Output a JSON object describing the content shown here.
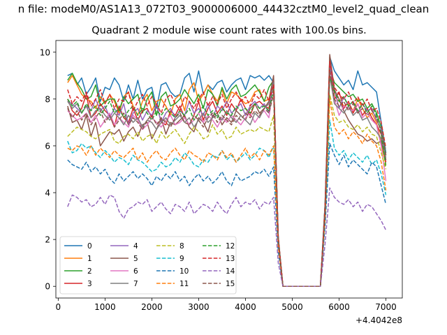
{
  "figure": {
    "suptitle": "n file: modeM0/AS1A13_072T03_9000006000_44432cztM0_level2_quad_clean",
    "title": "Quadrant 2 module wise count rates with 100.0s bins."
  },
  "chart_data": {
    "type": "line",
    "title": "Quadrant 2 module wise count rates with 100.0s bins.",
    "xlabel": "",
    "ylabel": "",
    "x_offset_label": "+4.4042e8",
    "xlim": [
      -50,
      7350
    ],
    "ylim": [
      -0.5,
      10.5
    ],
    "xticks": [
      0,
      1000,
      2000,
      3000,
      4000,
      5000,
      6000,
      7000
    ],
    "yticks": [
      0,
      2,
      4,
      6,
      8,
      10
    ],
    "grid": false,
    "legend": {
      "placement": "lower-left",
      "columns": 4
    },
    "x": [
      200,
      300,
      400,
      500,
      600,
      700,
      800,
      900,
      1000,
      1100,
      1200,
      1300,
      1400,
      1500,
      1600,
      1700,
      1800,
      1900,
      2000,
      2100,
      2200,
      2300,
      2400,
      2500,
      2600,
      2700,
      2800,
      2900,
      3000,
      3100,
      3200,
      3300,
      3400,
      3500,
      3600,
      3700,
      3800,
      3900,
      4000,
      4100,
      4200,
      4300,
      4400,
      4500,
      4600,
      4700,
      4800,
      4900,
      5000,
      5100,
      5200,
      5300,
      5400,
      5500,
      5600,
      5700,
      5800,
      5900,
      6000,
      6100,
      6200,
      6300,
      6400,
      6500,
      6600,
      6700,
      6800,
      6900,
      7000
    ],
    "series": [
      {
        "name": "0",
        "color": "#1f77b4",
        "dash": false,
        "values": [
          9.0,
          9.1,
          8.6,
          8.9,
          8.2,
          8.5,
          8.9,
          7.9,
          8.5,
          8.4,
          8.9,
          8.6,
          7.9,
          8.6,
          8.0,
          8.8,
          8.0,
          8.4,
          8.5,
          7.6,
          8.6,
          8.7,
          8.3,
          8.1,
          8.2,
          8.9,
          9.1,
          8.3,
          9.2,
          8.2,
          8.6,
          8.4,
          8.7,
          8.8,
          8.3,
          8.6,
          8.8,
          8.9,
          8.4,
          9.0,
          8.9,
          9.0,
          8.8,
          9.0,
          8.7,
          2.1,
          0,
          0,
          0,
          0,
          0,
          0,
          0,
          0,
          0,
          3.5,
          9.8,
          9.2,
          8.9,
          8.6,
          8.8,
          8.4,
          9.2,
          8.6,
          8.7,
          8.5,
          8.3,
          7.0,
          5.7
        ]
      },
      {
        "name": "1",
        "color": "#ff7f0e",
        "dash": false,
        "values": [
          8.7,
          9.0,
          8.6,
          8.2,
          8.0,
          7.9,
          7.6,
          8.1,
          7.8,
          8.2,
          7.9,
          7.4,
          8.1,
          8.3,
          7.7,
          7.3,
          7.9,
          8.2,
          7.5,
          7.9,
          8.0,
          7.7,
          7.3,
          8.0,
          8.2,
          7.5,
          8.4,
          8.7,
          7.9,
          8.2,
          8.6,
          8.2,
          7.9,
          8.4,
          7.8,
          8.3,
          8.2,
          8.0,
          7.8,
          7.9,
          8.3,
          8.4,
          7.9,
          8.0,
          8.9,
          2.0,
          0,
          0,
          0,
          0,
          0,
          0,
          0,
          0,
          0,
          3.4,
          9.8,
          8.1,
          7.9,
          7.7,
          7.8,
          7.5,
          8.0,
          7.6,
          7.2,
          7.4,
          7.0,
          6.1,
          5.2
        ]
      },
      {
        "name": "2",
        "color": "#2ca02c",
        "dash": false,
        "values": [
          8.8,
          9.1,
          8.7,
          8.4,
          8.0,
          8.1,
          8.6,
          7.7,
          7.9,
          8.0,
          8.0,
          7.5,
          8.1,
          7.8,
          8.0,
          8.2,
          7.4,
          8.0,
          8.3,
          7.3,
          8.1,
          8.3,
          7.7,
          7.8,
          8.0,
          8.4,
          8.1,
          7.8,
          8.2,
          7.6,
          8.4,
          8.2,
          7.7,
          8.5,
          8.0,
          8.4,
          8.6,
          8.1,
          8.2,
          8.4,
          8.6,
          8.3,
          7.9,
          8.5,
          8.8,
          2.1,
          0,
          0,
          0,
          0,
          0,
          0,
          0,
          0,
          0,
          3.5,
          9.3,
          8.7,
          8.5,
          8.3,
          8.1,
          8.2,
          7.9,
          8.0,
          7.6,
          7.8,
          7.4,
          6.8,
          5.6
        ]
      },
      {
        "name": "3",
        "color": "#d62728",
        "dash": false,
        "values": [
          8.0,
          7.5,
          7.3,
          7.6,
          8.2,
          7.2,
          7.4,
          7.8,
          7.5,
          7.3,
          6.8,
          7.7,
          7.2,
          7.0,
          7.6,
          7.1,
          7.5,
          7.6,
          7.2,
          7.8,
          7.0,
          6.9,
          7.5,
          7.3,
          7.7,
          7.2,
          6.9,
          7.3,
          7.9,
          7.1,
          7.6,
          7.9,
          7.4,
          7.7,
          7.3,
          7.8,
          7.5,
          8.0,
          7.6,
          7.3,
          7.8,
          7.9,
          7.7,
          7.6,
          8.9,
          2.0,
          0,
          0,
          0,
          0,
          0,
          0,
          0,
          0,
          0,
          3.3,
          9.6,
          8.0,
          8.3,
          7.6,
          7.9,
          7.4,
          7.8,
          7.3,
          7.6,
          7.2,
          6.9,
          6.5,
          5.3
        ]
      },
      {
        "name": "4",
        "color": "#9467bd",
        "dash": false,
        "values": [
          7.9,
          7.8,
          7.6,
          7.4,
          7.7,
          7.5,
          8.0,
          7.5,
          7.7,
          7.2,
          7.6,
          7.3,
          7.8,
          6.9,
          7.4,
          7.6,
          7.1,
          7.5,
          7.3,
          7.8,
          7.0,
          7.4,
          7.6,
          7.2,
          7.5,
          7.3,
          7.9,
          7.4,
          7.6,
          7.3,
          7.8,
          7.2,
          7.7,
          7.5,
          7.9,
          7.4,
          7.6,
          7.8,
          7.3,
          7.7,
          7.9,
          7.6,
          7.8,
          7.4,
          8.8,
          2.0,
          0,
          0,
          0,
          0,
          0,
          0,
          0,
          0,
          0,
          3.4,
          9.5,
          8.4,
          7.6,
          8.1,
          7.7,
          7.9,
          7.4,
          7.8,
          7.5,
          7.6,
          7.1,
          6.7,
          5.4
        ]
      },
      {
        "name": "5",
        "color": "#8c564b",
        "dash": false,
        "values": [
          7.7,
          7.0,
          7.1,
          6.7,
          7.3,
          6.4,
          7.0,
          6.0,
          6.3,
          6.6,
          6.5,
          6.7,
          6.2,
          6.6,
          6.8,
          6.4,
          6.9,
          7.0,
          6.3,
          6.7,
          7.2,
          6.5,
          7.0,
          6.9,
          7.1,
          7.3,
          6.8,
          6.6,
          7.2,
          7.0,
          6.6,
          7.3,
          7.4,
          6.9,
          7.2,
          7.0,
          7.5,
          7.3,
          7.1,
          7.6,
          7.8,
          7.4,
          7.6,
          7.9,
          9.0,
          2.0,
          0,
          0,
          0,
          0,
          0,
          0,
          0,
          0,
          0,
          3.3,
          9.9,
          8.4,
          8.0,
          7.5,
          7.1,
          6.8,
          6.5,
          6.4,
          6.2,
          6.3,
          6.1,
          6.2,
          5.4
        ]
      },
      {
        "name": "6",
        "color": "#e377c2",
        "dash": false,
        "values": [
          7.5,
          7.3,
          7.1,
          7.2,
          7.4,
          7.0,
          7.3,
          6.8,
          7.1,
          7.4,
          6.9,
          7.2,
          7.0,
          6.8,
          7.3,
          7.1,
          6.7,
          6.9,
          7.2,
          7.0,
          6.8,
          7.1,
          7.3,
          6.9,
          7.0,
          7.2,
          6.9,
          7.1,
          7.4,
          7.0,
          7.3,
          7.1,
          6.8,
          7.2,
          7.0,
          7.3,
          7.1,
          6.9,
          7.2,
          7.4,
          7.0,
          7.3,
          7.5,
          7.2,
          8.6,
          1.9,
          0,
          0,
          0,
          0,
          0,
          0,
          0,
          0,
          0,
          3.2,
          9.1,
          8.0,
          7.3,
          7.7,
          7.6,
          7.5,
          7.8,
          7.2,
          7.4,
          7.1,
          6.9,
          6.0,
          4.5
        ]
      },
      {
        "name": "7",
        "color": "#7f7f7f",
        "dash": false,
        "values": [
          7.9,
          7.6,
          7.8,
          7.4,
          7.7,
          7.2,
          7.5,
          7.6,
          7.3,
          7.1,
          7.4,
          7.2,
          6.9,
          7.3,
          7.0,
          7.2,
          6.8,
          7.1,
          7.0,
          6.7,
          7.0,
          7.2,
          6.9,
          7.1,
          7.3,
          7.0,
          7.2,
          6.8,
          7.1,
          7.4,
          7.0,
          7.2,
          7.3,
          7.1,
          7.5,
          7.2,
          7.0,
          7.3,
          7.1,
          6.9,
          7.4,
          7.2,
          7.6,
          7.8,
          8.7,
          2.0,
          0,
          0,
          0,
          0,
          0,
          0,
          0,
          0,
          0,
          3.3,
          9.0,
          7.8,
          7.6,
          7.4,
          7.7,
          7.3,
          7.5,
          7.1,
          7.2,
          6.8,
          6.6,
          6.3,
          5.5
        ]
      },
      {
        "name": "8",
        "color": "#bcbd22",
        "dash": true,
        "values": [
          6.4,
          6.6,
          6.8,
          6.7,
          6.6,
          6.4,
          6.3,
          6.5,
          6.6,
          6.7,
          6.2,
          6.1,
          6.4,
          6.5,
          6.3,
          6.6,
          6.2,
          6.4,
          6.5,
          6.1,
          6.6,
          6.3,
          6.5,
          6.7,
          6.4,
          6.1,
          6.5,
          6.8,
          6.6,
          6.3,
          6.4,
          6.9,
          6.5,
          6.7,
          6.3,
          6.4,
          6.8,
          6.5,
          6.6,
          6.7,
          6.6,
          6.8,
          6.7,
          6.6,
          7.3,
          1.9,
          0,
          0,
          0,
          0,
          0,
          0,
          0,
          0,
          0,
          3.0,
          8.2,
          7.3,
          7.0,
          7.1,
          6.8,
          6.7,
          6.9,
          6.6,
          6.8,
          6.5,
          6.4,
          5.7,
          5.0
        ]
      },
      {
        "name": "9",
        "color": "#17becf",
        "dash": true,
        "values": [
          6.2,
          5.7,
          5.8,
          6.1,
          5.9,
          6.0,
          5.7,
          5.5,
          5.8,
          5.6,
          5.3,
          5.5,
          5.4,
          5.2,
          5.6,
          5.4,
          5.3,
          5.1,
          4.9,
          5.0,
          5.3,
          5.1,
          5.2,
          5.5,
          5.3,
          5.7,
          5.5,
          5.2,
          5.1,
          5.4,
          5.3,
          5.6,
          5.5,
          5.8,
          5.4,
          5.6,
          5.3,
          5.5,
          5.7,
          5.4,
          5.6,
          5.9,
          5.8,
          5.5,
          6.0,
          1.8,
          0,
          0,
          0,
          0,
          0,
          0,
          0,
          0,
          0,
          2.8,
          7.1,
          5.9,
          5.6,
          5.8,
          5.4,
          5.7,
          5.5,
          5.3,
          5.6,
          5.2,
          5.4,
          4.8,
          3.9
        ]
      },
      {
        "name": "10",
        "color": "#1f77b4",
        "dash": true,
        "values": [
          5.4,
          5.2,
          5.1,
          5.0,
          5.3,
          4.9,
          5.1,
          4.8,
          5.0,
          4.6,
          4.4,
          4.8,
          4.5,
          4.7,
          4.9,
          4.6,
          4.8,
          4.6,
          4.3,
          4.7,
          4.5,
          4.8,
          4.6,
          4.9,
          4.5,
          4.7,
          4.3,
          4.6,
          4.8,
          4.5,
          4.7,
          4.4,
          4.6,
          4.9,
          4.5,
          4.3,
          4.8,
          4.5,
          4.6,
          4.7,
          4.9,
          4.8,
          5.0,
          4.7,
          5.1,
          1.5,
          0,
          0,
          0,
          0,
          0,
          0,
          0,
          0,
          0,
          2.6,
          6.1,
          5.6,
          5.2,
          5.6,
          5.1,
          5.4,
          5.2,
          5.0,
          4.8,
          5.3,
          5.1,
          4.3,
          3.5
        ]
      },
      {
        "name": "11",
        "color": "#ff7f0e",
        "dash": true,
        "values": [
          5.9,
          5.8,
          6.0,
          5.9,
          5.6,
          6.0,
          5.6,
          5.9,
          5.7,
          5.5,
          5.8,
          5.6,
          5.5,
          5.7,
          5.9,
          5.4,
          5.7,
          5.3,
          5.6,
          5.8,
          5.5,
          5.4,
          5.7,
          5.9,
          5.6,
          5.4,
          5.8,
          5.6,
          5.5,
          5.3,
          5.7,
          5.6,
          5.4,
          5.8,
          5.5,
          5.7,
          5.3,
          5.6,
          5.9,
          5.5,
          5.7,
          5.4,
          5.8,
          5.6,
          6.0,
          1.7,
          0,
          0,
          0,
          0,
          0,
          0,
          0,
          0,
          0,
          2.9,
          8.0,
          6.8,
          6.5,
          6.7,
          6.3,
          6.6,
          6.4,
          6.1,
          6.5,
          6.2,
          6.0,
          5.3,
          4.1
        ]
      },
      {
        "name": "12",
        "color": "#2ca02c",
        "dash": true,
        "values": [
          8.0,
          7.7,
          7.9,
          7.4,
          7.8,
          7.5,
          7.7,
          7.3,
          7.6,
          7.9,
          7.4,
          7.6,
          7.2,
          7.5,
          7.7,
          7.3,
          7.6,
          7.4,
          7.1,
          7.5,
          7.3,
          7.6,
          7.4,
          7.2,
          7.5,
          7.3,
          7.6,
          7.1,
          7.4,
          7.7,
          7.3,
          7.5,
          7.2,
          7.6,
          7.4,
          7.3,
          7.7,
          7.5,
          7.6,
          7.4,
          7.8,
          7.6,
          7.7,
          7.5,
          8.4,
          2.0,
          0,
          0,
          0,
          0,
          0,
          0,
          0,
          0,
          0,
          3.2,
          9.0,
          8.3,
          7.9,
          8.1,
          7.7,
          7.9,
          7.5,
          7.8,
          7.4,
          7.7,
          7.3,
          6.5,
          5.1
        ]
      },
      {
        "name": "13",
        "color": "#d62728",
        "dash": true,
        "values": [
          8.4,
          7.8,
          8.1,
          7.9,
          8.3,
          7.7,
          8.0,
          8.4,
          7.8,
          8.2,
          7.6,
          8.0,
          7.9,
          8.3,
          7.5,
          7.9,
          8.2,
          7.7,
          8.1,
          7.8,
          7.4,
          8.0,
          8.2,
          7.8,
          7.5,
          8.1,
          7.9,
          7.6,
          8.0,
          8.3,
          7.7,
          8.1,
          7.8,
          8.2,
          7.6,
          8.0,
          8.3,
          7.9,
          8.1,
          7.7,
          8.2,
          8.0,
          8.4,
          7.9,
          8.6,
          2.1,
          0,
          0,
          0,
          0,
          0,
          0,
          0,
          0,
          0,
          3.4,
          9.6,
          8.5,
          8.2,
          8.0,
          8.3,
          7.8,
          8.1,
          7.7,
          8.0,
          7.5,
          7.6,
          7.0,
          5.9
        ]
      },
      {
        "name": "14",
        "color": "#9467bd",
        "dash": true,
        "values": [
          3.4,
          3.9,
          3.8,
          3.6,
          3.7,
          3.4,
          3.5,
          3.8,
          3.5,
          3.9,
          3.8,
          3.2,
          2.9,
          3.3,
          3.4,
          3.6,
          3.5,
          3.7,
          3.2,
          3.4,
          3.6,
          3.3,
          3.1,
          3.5,
          3.4,
          3.2,
          3.6,
          3.1,
          3.3,
          3.5,
          3.4,
          3.2,
          3.6,
          3.3,
          3.1,
          3.5,
          3.8,
          3.4,
          3.6,
          3.5,
          3.7,
          3.3,
          3.6,
          3.5,
          3.8,
          1.0,
          0,
          0,
          0,
          0,
          0,
          0,
          0,
          0,
          0,
          1.8,
          4.2,
          3.8,
          3.6,
          3.5,
          3.7,
          3.4,
          3.6,
          3.2,
          3.5,
          3.4,
          3.1,
          2.8,
          2.4
        ]
      },
      {
        "name": "15",
        "color": "#8c564b",
        "dash": true,
        "values": [
          7.6,
          7.2,
          7.5,
          7.1,
          7.4,
          6.9,
          7.2,
          7.5,
          7.0,
          7.3,
          6.8,
          7.1,
          7.4,
          6.9,
          7.2,
          7.0,
          6.7,
          7.1,
          7.3,
          6.9,
          7.2,
          7.0,
          6.8,
          7.2,
          7.4,
          7.0,
          6.9,
          7.3,
          7.1,
          6.8,
          7.2,
          7.4,
          7.0,
          7.3,
          7.1,
          6.9,
          7.3,
          7.1,
          7.4,
          7.2,
          7.5,
          7.3,
          7.6,
          7.4,
          8.2,
          2.0,
          0,
          0,
          0,
          0,
          0,
          0,
          0,
          0,
          0,
          3.2,
          9.2,
          8.0,
          7.7,
          7.9,
          7.5,
          7.8,
          7.4,
          7.6,
          7.3,
          7.5,
          7.2,
          6.6,
          5.6
        ]
      }
    ]
  }
}
